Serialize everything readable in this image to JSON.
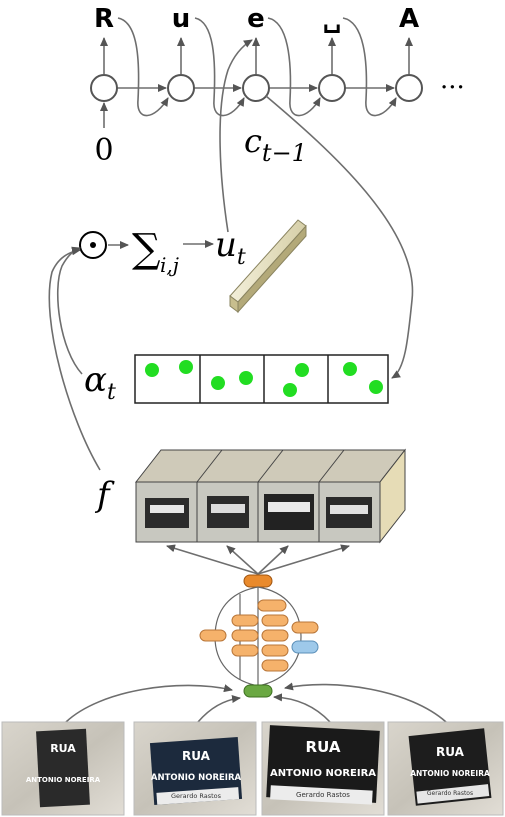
{
  "rnn": {
    "outputs": [
      "R",
      "u",
      "e",
      "␣",
      "A"
    ],
    "initial_input": "0",
    "ellipsis": "···",
    "state_label": "c",
    "state_subscript": "t−1"
  },
  "attention": {
    "odot_symbol": "⊙",
    "sum_symbol": "∑",
    "sum_subscript": "i,j",
    "context_label": "u",
    "context_subscript": "t",
    "alpha_label": "α",
    "alpha_subscript": "t",
    "feature_label": "f"
  },
  "street_signs": [
    {
      "line1": "RUA",
      "line2": "ANTONIO NOREIRA",
      "line3": ""
    },
    {
      "line1": "RUA",
      "line2": "ANTONIO NOREIRA",
      "line3": "Gerardo Rastos"
    },
    {
      "line1": "RUA",
      "line2": "ANTONIO NOREIRA",
      "line3": "Gerardo Rastos"
    },
    {
      "line1": "RUA",
      "line2": "ANTONIO NOREIRA",
      "line3": "Gerardo Rastos"
    }
  ],
  "colors": {
    "cnn_orange": "#f5b26b",
    "cnn_top": "#e98a2c",
    "cnn_blue": "#9ec9ea",
    "cnn_green": "#6aa842",
    "attention_dot": "#22dd22",
    "arrow": "#6e6e6e"
  }
}
